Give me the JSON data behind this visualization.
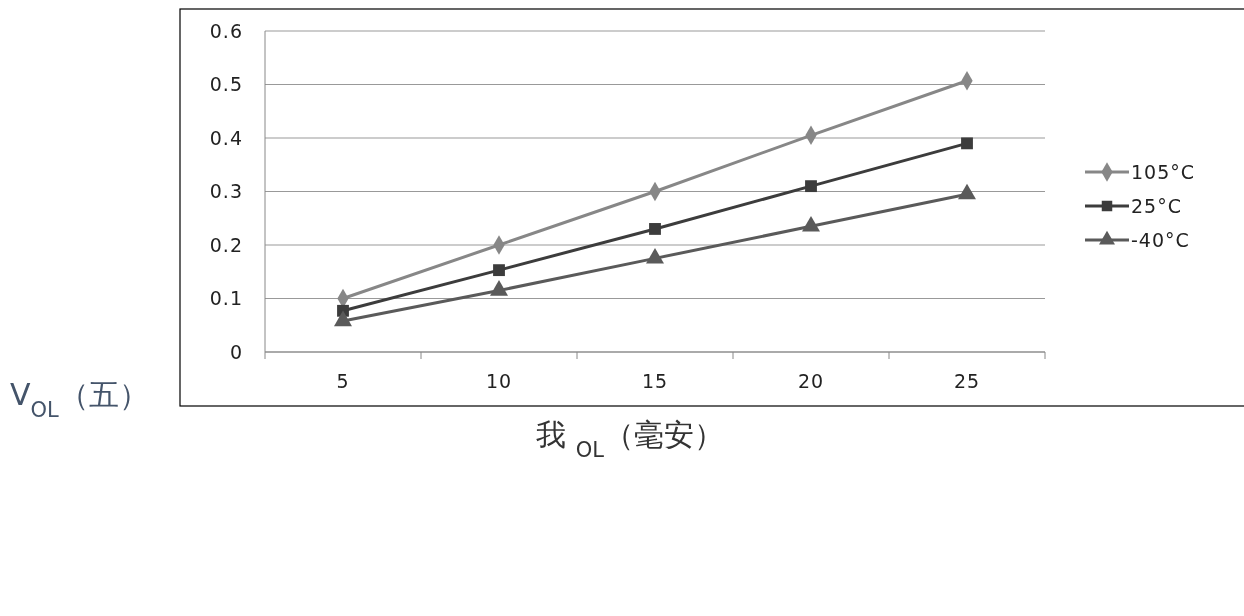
{
  "chart_data": {
    "type": "line",
    "xlabel": "我 $_{OL}$（毫安）",
    "ylabel": "V$_{OL}$（五）",
    "categories": [
      "5",
      "10",
      "15",
      "20",
      "25"
    ],
    "ylim": [
      0,
      0.6
    ],
    "yticks": [
      0,
      0.1,
      0.2,
      0.3,
      0.4,
      0.5,
      0.6
    ],
    "grid": "y",
    "legend": "right",
    "line_style": "solid",
    "series": [
      {
        "name": "105°C",
        "color": "#878787",
        "marker": "diamond",
        "values": [
          0.1,
          0.2,
          0.3,
          0.405,
          0.507
        ]
      },
      {
        "name": "25°C",
        "color": "#3c3c3c",
        "marker": "square",
        "values": [
          0.077,
          0.153,
          0.23,
          0.31,
          0.39
        ]
      },
      {
        "name": "-40°C",
        "color": "#5a5a5a",
        "marker": "triangle",
        "values": [
          0.058,
          0.115,
          0.175,
          0.235,
          0.295
        ]
      }
    ]
  }
}
